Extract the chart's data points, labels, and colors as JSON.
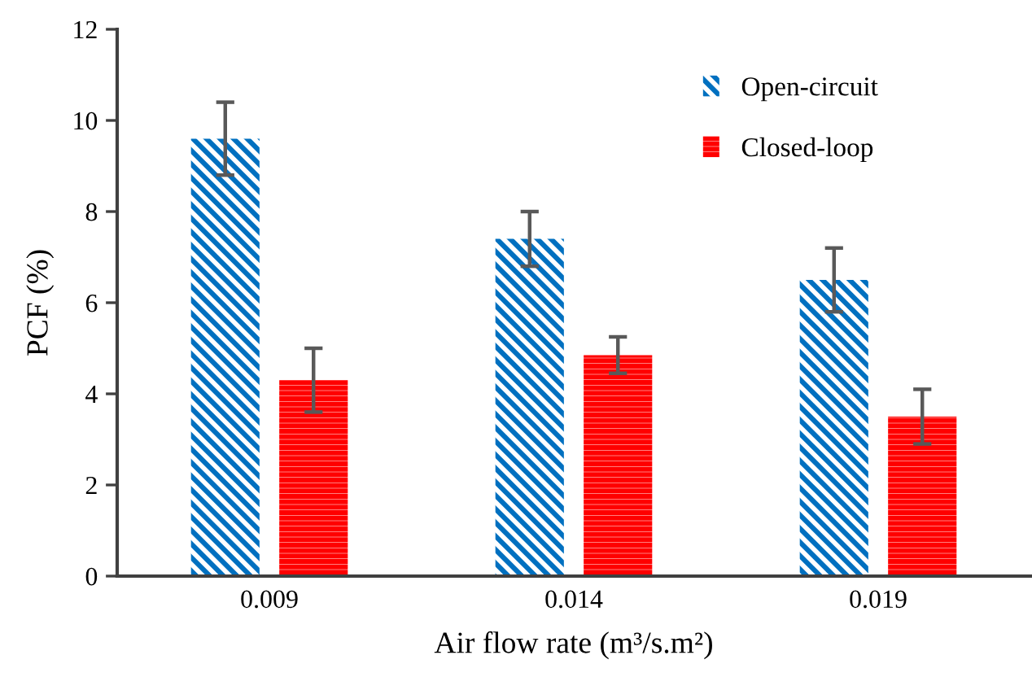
{
  "chart_data": {
    "type": "bar",
    "xlabel": "Air flow rate (m³/s.m²)",
    "ylabel": "PCF (%)",
    "categories": [
      "0.009",
      "0.014",
      "0.019"
    ],
    "series": [
      {
        "name": "Open-circuit",
        "color": "#0070c0",
        "values": [
          9.6,
          7.4,
          6.5
        ],
        "errors": [
          0.8,
          0.6,
          0.7
        ]
      },
      {
        "name": "Closed-loop",
        "color": "#ff0000",
        "values": [
          4.3,
          4.85,
          3.5
        ],
        "errors": [
          0.7,
          0.4,
          0.6
        ]
      }
    ],
    "ylim": [
      0,
      12
    ],
    "yticks": [
      0,
      2,
      4,
      6,
      8,
      10,
      12
    ],
    "grid": false,
    "legend": "top right"
  }
}
